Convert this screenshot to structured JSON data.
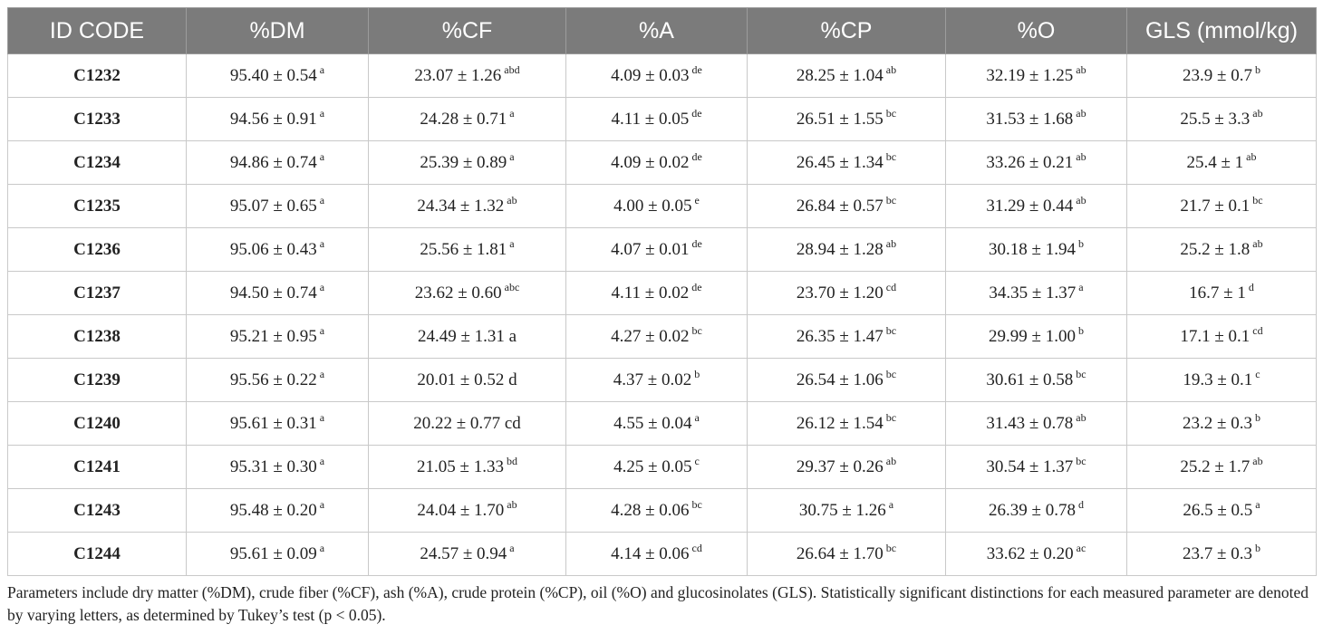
{
  "table": {
    "headers": [
      "ID CODE",
      "%DM",
      "%CF",
      "%A",
      "%CP",
      "%O",
      "GLS (mmol/kg)"
    ],
    "rows": [
      {
        "id": "C1232",
        "cells": [
          {
            "v": "95.40 ± 0.54",
            "s": "a"
          },
          {
            "v": "23.07 ± 1.26",
            "s": "abd"
          },
          {
            "v": "4.09 ± 0.03",
            "s": "de"
          },
          {
            "v": "28.25 ± 1.04",
            "s": "ab"
          },
          {
            "v": "32.19 ± 1.25",
            "s": "ab"
          },
          {
            "v": "23.9 ± 0.7",
            "s": "b"
          }
        ]
      },
      {
        "id": "C1233",
        "cells": [
          {
            "v": "94.56 ± 0.91",
            "s": "a"
          },
          {
            "v": "24.28 ± 0.71",
            "s": "a"
          },
          {
            "v": "4.11 ± 0.05",
            "s": "de"
          },
          {
            "v": "26.51 ± 1.55",
            "s": "bc"
          },
          {
            "v": "31.53 ± 1.68",
            "s": "ab"
          },
          {
            "v": "25.5 ± 3.3",
            "s": "ab"
          }
        ]
      },
      {
        "id": "C1234",
        "cells": [
          {
            "v": "94.86 ± 0.74",
            "s": "a"
          },
          {
            "v": "25.39 ± 0.89",
            "s": "a"
          },
          {
            "v": "4.09 ± 0.02",
            "s": "de"
          },
          {
            "v": "26.45 ± 1.34",
            "s": "bc"
          },
          {
            "v": "33.26 ± 0.21",
            "s": "ab"
          },
          {
            "v": "25.4 ± 1",
            "s": "ab"
          }
        ]
      },
      {
        "id": "C1235",
        "cells": [
          {
            "v": "95.07 ± 0.65",
            "s": "a"
          },
          {
            "v": "24.34 ± 1.32",
            "s": "ab"
          },
          {
            "v": "4.00 ± 0.05",
            "s": "e"
          },
          {
            "v": "26.84 ± 0.57",
            "s": "bc"
          },
          {
            "v": "31.29 ± 0.44",
            "s": "ab"
          },
          {
            "v": "21.7 ± 0.1",
            "s": "bc"
          }
        ]
      },
      {
        "id": "C1236",
        "cells": [
          {
            "v": "95.06 ± 0.43",
            "s": "a"
          },
          {
            "v": "25.56 ± 1.81",
            "s": "a"
          },
          {
            "v": "4.07 ± 0.01",
            "s": "de"
          },
          {
            "v": "28.94 ± 1.28",
            "s": "ab"
          },
          {
            "v": "30.18 ± 1.94",
            "s": "b"
          },
          {
            "v": "25.2 ± 1.8",
            "s": "ab"
          }
        ]
      },
      {
        "id": "C1237",
        "cells": [
          {
            "v": "94.50 ± 0.74",
            "s": "a"
          },
          {
            "v": "23.62 ± 0.60",
            "s": "abc"
          },
          {
            "v": "4.11 ± 0.02",
            "s": "de"
          },
          {
            "v": "23.70 ± 1.20",
            "s": "cd"
          },
          {
            "v": "34.35 ± 1.37",
            "s": "a"
          },
          {
            "v": "16.7 ± 1",
            "s": "d"
          }
        ]
      },
      {
        "id": "C1238",
        "cells": [
          {
            "v": "95.21 ± 0.95",
            "s": "a"
          },
          {
            "v": "24.49 ± 1.31 a",
            "s": ""
          },
          {
            "v": "4.27 ± 0.02",
            "s": "bc"
          },
          {
            "v": "26.35 ± 1.47",
            "s": "bc"
          },
          {
            "v": "29.99 ± 1.00",
            "s": "b"
          },
          {
            "v": "17.1 ± 0.1",
            "s": "cd"
          }
        ]
      },
      {
        "id": "C1239",
        "cells": [
          {
            "v": "95.56 ± 0.22",
            "s": "a"
          },
          {
            "v": "20.01 ± 0.52 d",
            "s": ""
          },
          {
            "v": "4.37 ± 0.02",
            "s": "b"
          },
          {
            "v": "26.54 ± 1.06",
            "s": "bc"
          },
          {
            "v": "30.61 ± 0.58",
            "s": "bc"
          },
          {
            "v": "19.3 ± 0.1",
            "s": "c"
          }
        ]
      },
      {
        "id": "C1240",
        "cells": [
          {
            "v": "95.61 ± 0.31",
            "s": "a"
          },
          {
            "v": "20.22 ± 0.77 cd",
            "s": ""
          },
          {
            "v": "4.55 ± 0.04",
            "s": "a"
          },
          {
            "v": "26.12 ± 1.54",
            "s": "bc"
          },
          {
            "v": "31.43 ± 0.78",
            "s": "ab"
          },
          {
            "v": "23.2 ± 0.3",
            "s": "b"
          }
        ]
      },
      {
        "id": "C1241",
        "cells": [
          {
            "v": "95.31 ± 0.30",
            "s": "a"
          },
          {
            "v": "21.05 ± 1.33",
            "s": "bd"
          },
          {
            "v": "4.25 ± 0.05",
            "s": "c"
          },
          {
            "v": "29.37 ± 0.26",
            "s": "ab"
          },
          {
            "v": "30.54 ± 1.37",
            "s": "bc"
          },
          {
            "v": "25.2 ± 1.7",
            "s": "ab"
          }
        ]
      },
      {
        "id": "C1243",
        "cells": [
          {
            "v": "95.48 ± 0.20",
            "s": "a"
          },
          {
            "v": "24.04 ± 1.70",
            "s": "ab"
          },
          {
            "v": "4.28 ± 0.06",
            "s": "bc"
          },
          {
            "v": "30.75 ± 1.26",
            "s": "a"
          },
          {
            "v": "26.39 ± 0.78",
            "s": "d"
          },
          {
            "v": "26.5 ± 0.5",
            "s": "a"
          }
        ]
      },
      {
        "id": "C1244",
        "cells": [
          {
            "v": "95.61 ± 0.09",
            "s": "a"
          },
          {
            "v": "24.57 ± 0.94",
            "s": "a"
          },
          {
            "v": "4.14 ± 0.06",
            "s": "cd"
          },
          {
            "v": "26.64 ± 1.70",
            "s": "bc"
          },
          {
            "v": "33.62 ± 0.20",
            "s": "ac"
          },
          {
            "v": "23.7 ± 0.3",
            "s": "b"
          }
        ]
      }
    ]
  },
  "footnote": "Parameters include dry matter (%DM), crude fiber (%CF), ash (%A), crude protein (%CP), oil (%O) and glucosinolates (GLS). Statistically significant distinctions for each measured parameter are denoted by varying letters, as determined by Tukey’s test (p < 0.05)."
}
